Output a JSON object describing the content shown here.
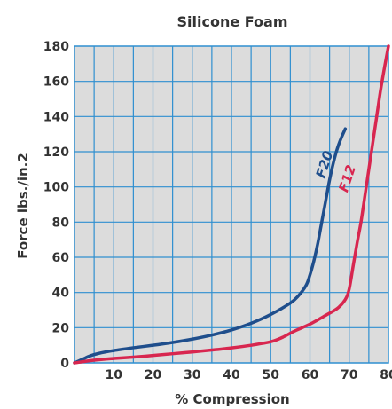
{
  "chart_data": {
    "type": "line",
    "title": "Silicone Foam",
    "xlabel": "% Compression",
    "ylabel": "Force lbs./in.2",
    "xlim": [
      0,
      80
    ],
    "ylim": [
      0,
      180
    ],
    "x_ticks": [
      10,
      20,
      30,
      40,
      50,
      60,
      70,
      80
    ],
    "y_ticks": [
      0,
      20,
      40,
      60,
      80,
      100,
      120,
      140,
      160,
      180
    ],
    "x_grid_step": 5,
    "y_grid_step": 20,
    "grid": true,
    "plot_background": "#dcdcdc",
    "grid_color": "#2f8fd0",
    "series": [
      {
        "name": "F20",
        "color": "#1f4e8c",
        "points": [
          [
            0,
            0
          ],
          [
            2,
            2
          ],
          [
            4,
            4
          ],
          [
            6,
            5.3
          ],
          [
            10,
            7
          ],
          [
            15,
            8.6
          ],
          [
            20,
            10
          ],
          [
            25,
            11.6
          ],
          [
            30,
            13.5
          ],
          [
            35,
            15.8
          ],
          [
            40,
            18.7
          ],
          [
            45,
            22.5
          ],
          [
            50,
            27.5
          ],
          [
            55,
            34
          ],
          [
            57,
            38
          ],
          [
            59,
            44
          ],
          [
            60,
            50
          ],
          [
            61,
            58
          ],
          [
            62,
            68
          ],
          [
            63,
            80
          ],
          [
            64,
            92
          ],
          [
            65,
            104
          ],
          [
            66,
            114
          ],
          [
            67,
            122
          ],
          [
            68,
            128
          ],
          [
            69,
            133
          ]
        ]
      },
      {
        "name": "F12",
        "color": "#d8264f",
        "points": [
          [
            0,
            0
          ],
          [
            5,
            1.5
          ],
          [
            10,
            2.5
          ],
          [
            15,
            3.3
          ],
          [
            20,
            4.2
          ],
          [
            25,
            5.2
          ],
          [
            30,
            6.2
          ],
          [
            35,
            7.3
          ],
          [
            40,
            8.5
          ],
          [
            45,
            10
          ],
          [
            50,
            12
          ],
          [
            53,
            14.5
          ],
          [
            56,
            18
          ],
          [
            60,
            22
          ],
          [
            64,
            27
          ],
          [
            67,
            31
          ],
          [
            69,
            36
          ],
          [
            70,
            42
          ],
          [
            71,
            55
          ],
          [
            72,
            68
          ],
          [
            73,
            80
          ],
          [
            74,
            95
          ],
          [
            75,
            110
          ],
          [
            76,
            125
          ],
          [
            77,
            140
          ],
          [
            78,
            155
          ],
          [
            79,
            168
          ],
          [
            80,
            180
          ]
        ]
      }
    ]
  }
}
